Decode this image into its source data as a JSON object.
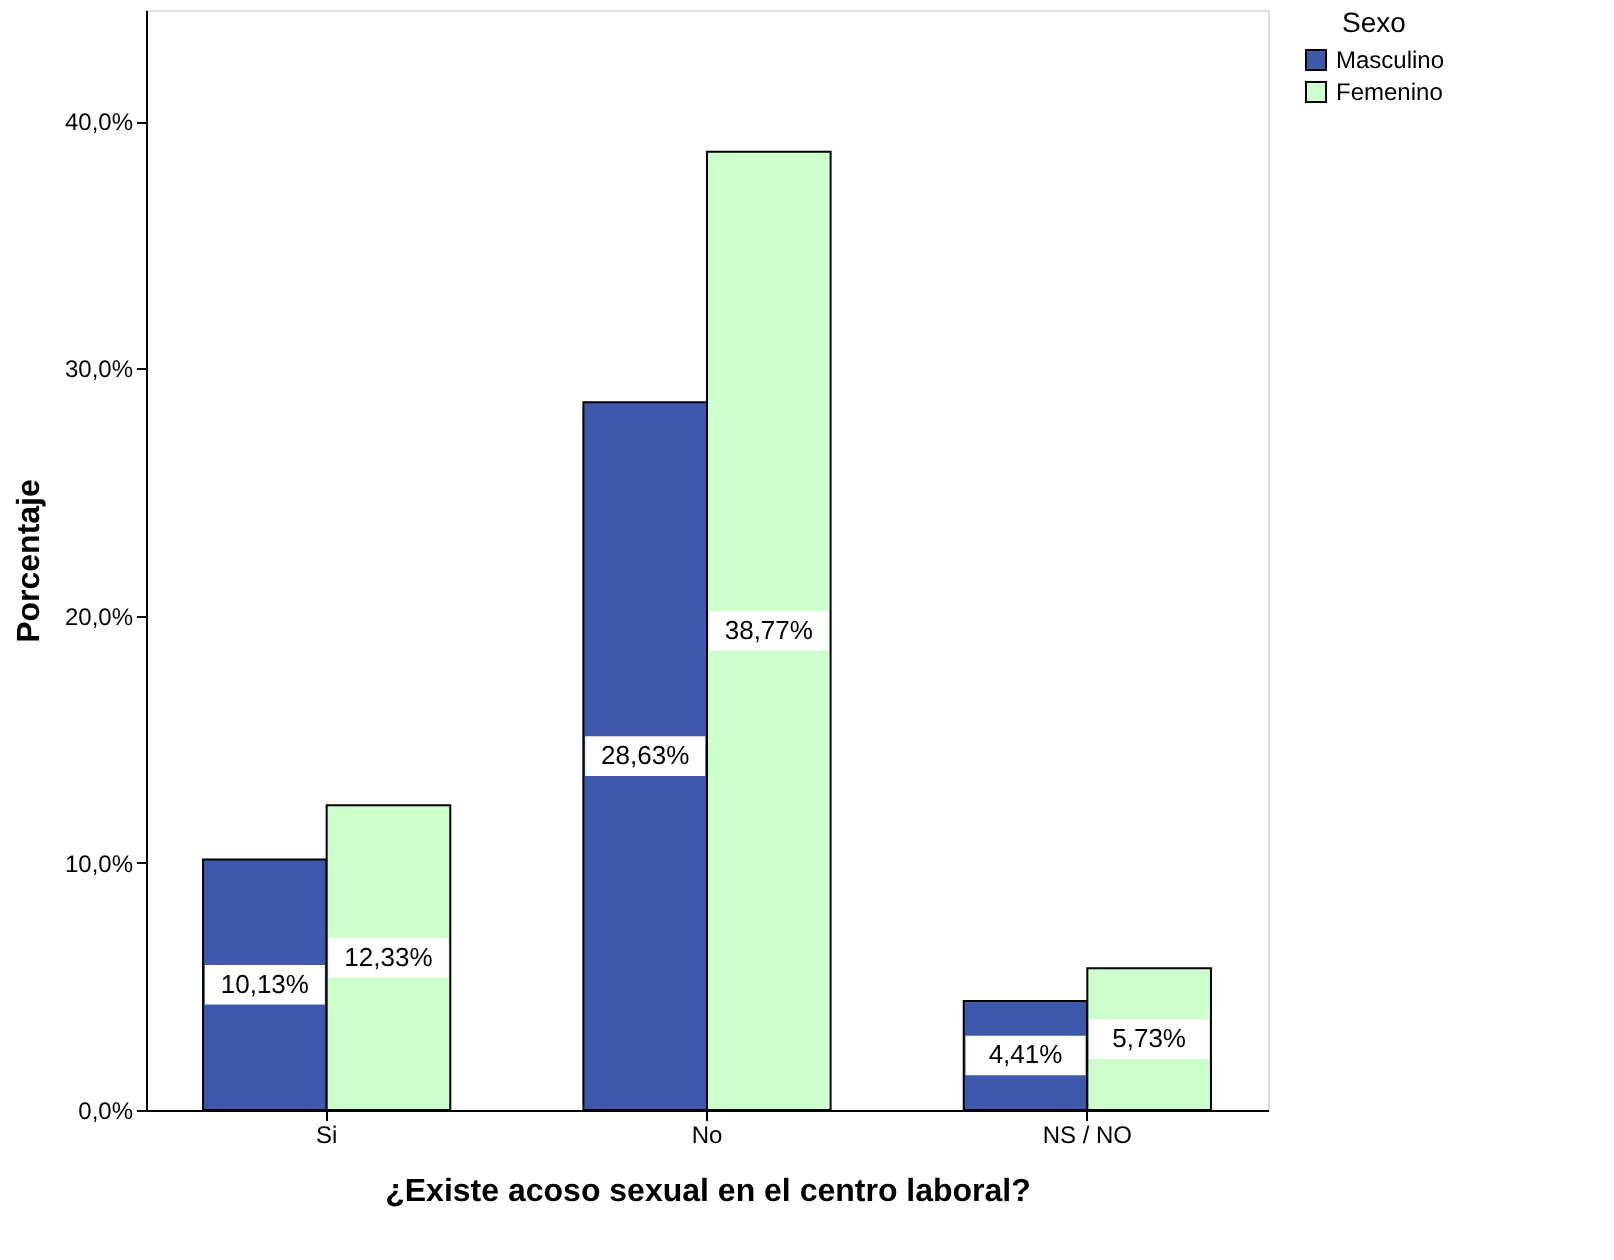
{
  "chart_data": {
    "type": "bar",
    "xlabel": "¿Existe acoso sexual en el centro laboral?",
    "ylabel": "Porcentaje",
    "legend_title": "Sexo",
    "legend": "top right",
    "categories": [
      "Si",
      "No",
      "NS / NO"
    ],
    "series": [
      {
        "name": "Masculino",
        "color": "#3e58ac",
        "values": [
          10.13,
          28.63,
          4.41
        ],
        "value_labels": [
          "10,13%",
          "28,63%",
          "4,41%"
        ]
      },
      {
        "name": "Femenino",
        "color": "#ccffcc",
        "values": [
          12.33,
          38.77,
          5.73
        ],
        "value_labels": [
          "12,33%",
          "38,77%",
          "5,73%"
        ]
      }
    ],
    "ylim": [
      0,
      44.5
    ],
    "yticks": [
      {
        "value": 0,
        "label": "0,0%"
      },
      {
        "value": 10,
        "label": "10,0%"
      },
      {
        "value": 20,
        "label": "20,0%"
      },
      {
        "value": 30,
        "label": "30,0%"
      },
      {
        "value": 40,
        "label": "40,0%"
      }
    ],
    "grid": false
  }
}
